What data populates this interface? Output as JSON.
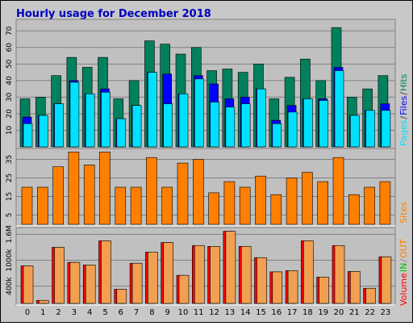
{
  "chart_data": [
    {
      "type": "bar",
      "title": "Hourly usage for December 2018",
      "categories": [
        "0",
        "1",
        "2",
        "3",
        "4",
        "5",
        "6",
        "7",
        "8",
        "9",
        "10",
        "11",
        "12",
        "13",
        "14",
        "15",
        "16",
        "17",
        "18",
        "19",
        "20",
        "21",
        "22",
        "23"
      ],
      "ylim": [
        0,
        75
      ],
      "yticks": [
        10,
        20,
        30,
        40,
        50,
        60,
        70
      ],
      "grid": true,
      "legend_separator": "/",
      "series": [
        {
          "name": "Hits",
          "color": "#00805c",
          "values": [
            29,
            30,
            43,
            54,
            48,
            54,
            29,
            40,
            64,
            62,
            56,
            60,
            46,
            47,
            45,
            50,
            29,
            42,
            53,
            40,
            72,
            30,
            35,
            43
          ]
        },
        {
          "name": "Files",
          "color": "#0000ff",
          "values": [
            18,
            19,
            26,
            40,
            32,
            35,
            17,
            25,
            45,
            44,
            32,
            43,
            38,
            29,
            30,
            35,
            16,
            25,
            29,
            29,
            48,
            19,
            22,
            26
          ]
        },
        {
          "name": "Pages",
          "color": "#00e0ff",
          "values": [
            14,
            19,
            26,
            39,
            32,
            33,
            17,
            25,
            45,
            26,
            32,
            41,
            27,
            24,
            26,
            35,
            14,
            21,
            29,
            28,
            46,
            19,
            22,
            22
          ]
        }
      ]
    },
    {
      "type": "bar",
      "ylim": [
        0,
        40
      ],
      "yticks": [
        5,
        15,
        25,
        35
      ],
      "grid": true,
      "series": [
        {
          "name": "Sites",
          "color": "#ff8000",
          "values": [
            20,
            20,
            31,
            39,
            32,
            39,
            20,
            20,
            36,
            20,
            33,
            35,
            17,
            23,
            20,
            26,
            16,
            25,
            28,
            23,
            36,
            16,
            20,
            23
          ]
        }
      ]
    },
    {
      "type": "bar",
      "ylim": [
        0,
        1700000
      ],
      "yticks": [
        {
          "value": 400000,
          "label": "400k"
        },
        {
          "value": 1000000,
          "label": "1000k"
        },
        {
          "value": 1600000,
          "label": "1.6M"
        }
      ],
      "grid": true,
      "legend_extra": [
        {
          "text": "IN",
          "color": "#00c000"
        },
        {
          "text": "/",
          "color": "#808080"
        },
        {
          "text": "OUT",
          "color": "#ff8000"
        }
      ],
      "series": [
        {
          "name": "Volume",
          "color": "#ff0000",
          "inner_color": "#f0a050",
          "values": [
            870000,
            70000,
            1300000,
            950000,
            890000,
            1450000,
            330000,
            930000,
            1190000,
            1410000,
            650000,
            1340000,
            1320000,
            1670000,
            1320000,
            1060000,
            730000,
            760000,
            1450000,
            610000,
            1340000,
            740000,
            350000,
            1080000
          ]
        }
      ]
    }
  ]
}
